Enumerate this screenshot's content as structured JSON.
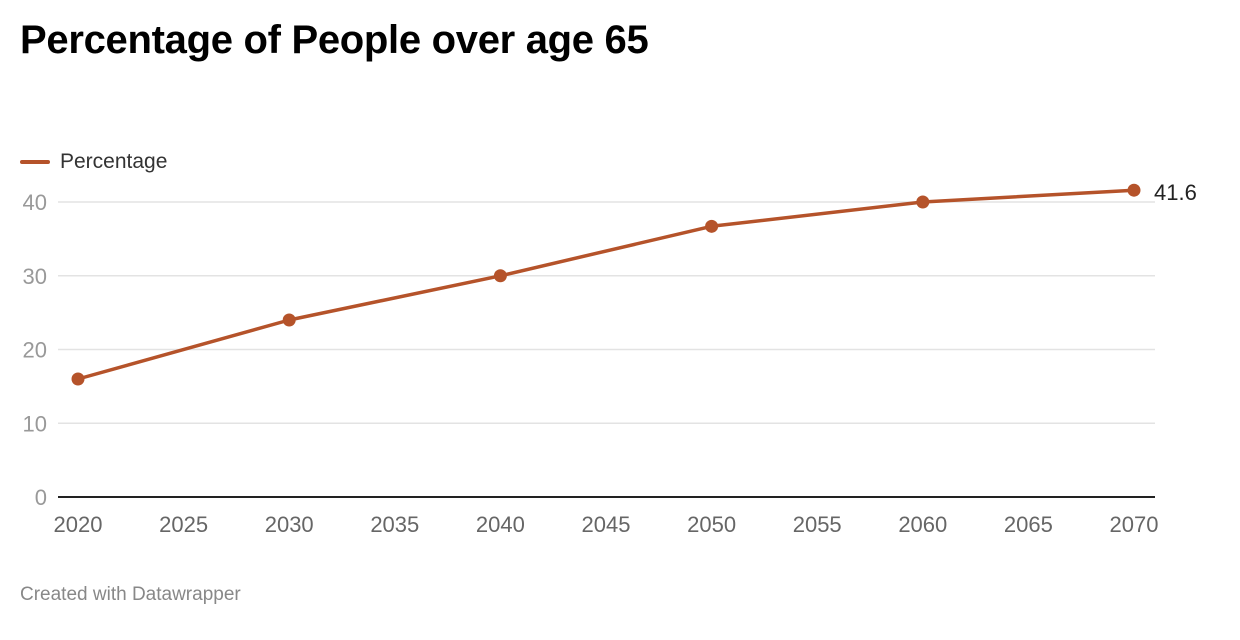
{
  "chart_data": {
    "type": "line",
    "title": "Percentage of People over age 65",
    "x": [
      2020,
      2030,
      2040,
      2050,
      2060,
      2070
    ],
    "series": [
      {
        "name": "Percentage",
        "values": [
          16.0,
          24.0,
          30.0,
          36.7,
          40.0,
          41.6
        ],
        "color": "#b5532a"
      }
    ],
    "xlim": [
      2020,
      2070
    ],
    "ylim": [
      0,
      40
    ],
    "x_ticks": [
      "2020",
      "2025",
      "2030",
      "2035",
      "2040",
      "2045",
      "2050",
      "2055",
      "2060",
      "2065",
      "2070"
    ],
    "y_ticks": [
      "0",
      "10",
      "20",
      "30",
      "40"
    ],
    "end_label": "41.6",
    "legend_position": "top-left",
    "grid": "horizontal"
  },
  "footer": "Created with Datawrapper",
  "colors": {
    "line": "#b5532a",
    "gridline": "#e3e3e3",
    "axis": "#222222",
    "tick_text": "#999999",
    "x_tick_text": "#666666"
  }
}
